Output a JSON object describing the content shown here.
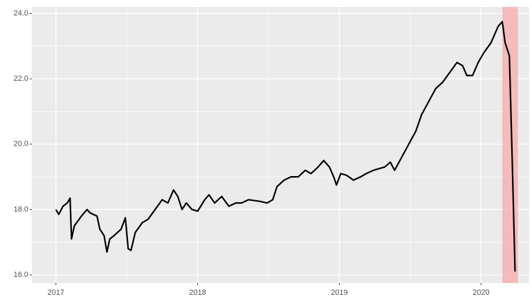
{
  "chart_data": {
    "type": "line",
    "x": [
      2017.0,
      2017.02,
      2017.05,
      2017.08,
      2017.1,
      2017.11,
      2017.13,
      2017.18,
      2017.22,
      2017.24,
      2017.29,
      2017.31,
      2017.34,
      2017.36,
      2017.38,
      2017.41,
      2017.46,
      2017.49,
      2017.51,
      2017.53,
      2017.56,
      2017.61,
      2017.65,
      2017.7,
      2017.75,
      2017.79,
      2017.83,
      2017.86,
      2017.89,
      2017.92,
      2017.96,
      2018.0,
      2018.05,
      2018.08,
      2018.12,
      2018.17,
      2018.22,
      2018.27,
      2018.31,
      2018.36,
      2018.44,
      2018.49,
      2018.53,
      2018.56,
      2018.61,
      2018.66,
      2018.71,
      2018.76,
      2018.8,
      2018.85,
      2018.89,
      2018.93,
      2018.96,
      2018.98,
      2019.01,
      2019.05,
      2019.1,
      2019.15,
      2019.19,
      2019.24,
      2019.32,
      2019.36,
      2019.39,
      2019.44,
      2019.49,
      2019.54,
      2019.58,
      2019.63,
      2019.68,
      2019.73,
      2019.78,
      2019.83,
      2019.87,
      2019.9,
      2019.94,
      2019.98,
      2020.02,
      2020.07,
      2020.12,
      2020.15,
      2020.17,
      2020.2,
      2020.22,
      2020.24
    ],
    "series": [
      {
        "color": "#000000",
        "values": [
          18.0,
          17.85,
          18.1,
          18.2,
          18.35,
          17.1,
          17.5,
          17.8,
          18.0,
          17.9,
          17.8,
          17.4,
          17.2,
          16.7,
          17.1,
          17.2,
          17.4,
          17.75,
          16.8,
          16.75,
          17.3,
          17.6,
          17.7,
          18.0,
          18.3,
          18.2,
          18.6,
          18.4,
          18.0,
          18.2,
          18.0,
          17.95,
          18.3,
          18.45,
          18.2,
          18.4,
          18.1,
          18.2,
          18.2,
          18.3,
          18.25,
          18.2,
          18.3,
          18.7,
          18.9,
          19.0,
          19.0,
          19.2,
          19.1,
          19.3,
          19.5,
          19.3,
          19.0,
          18.75,
          19.1,
          19.05,
          18.9,
          19.0,
          19.1,
          19.2,
          19.3,
          19.45,
          19.2,
          19.6,
          20.0,
          20.4,
          20.9,
          21.3,
          21.7,
          21.9,
          22.2,
          22.5,
          22.4,
          22.1,
          22.1,
          22.5,
          22.8,
          23.1,
          23.6,
          23.75,
          23.1,
          22.7,
          19.5,
          16.1
        ]
      }
    ],
    "shade": {
      "x": [
        2020.15,
        2020.26
      ],
      "color": "#f4b6b6"
    },
    "xlim": [
      2016.83,
      2020.34
    ],
    "ylim": [
      15.75,
      24.2
    ],
    "xticks": [
      2017,
      2018,
      2019,
      2020
    ],
    "xminor": [
      2017.5,
      2018.5,
      2019.5
    ],
    "yticks": [
      {
        "value": 16,
        "label": "16.0"
      },
      {
        "value": 18,
        "label": "18.0"
      },
      {
        "value": 20,
        "label": "20.0"
      },
      {
        "value": 22,
        "label": "22.0"
      },
      {
        "value": 24,
        "label": "24.0"
      }
    ],
    "yminor": [
      17,
      19,
      21,
      23
    ],
    "grid": true
  }
}
